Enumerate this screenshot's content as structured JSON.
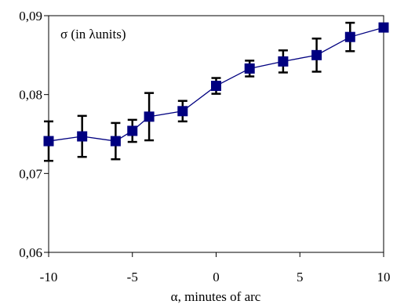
{
  "chart_data": {
    "type": "line",
    "title": "",
    "annotation": "σ (in λunits)",
    "xlabel": "α, minutes of arc",
    "ylabel": "",
    "xlim": [
      -10,
      10
    ],
    "ylim": [
      0.06,
      0.09
    ],
    "x_ticks": [
      -10,
      -5,
      0,
      5,
      10
    ],
    "x_tick_labels": [
      "-10",
      "-5",
      "0",
      "5",
      "10"
    ],
    "y_ticks": [
      0.06,
      0.07,
      0.08,
      0.09
    ],
    "y_tick_labels": [
      "0,06",
      "0,07",
      "0,08",
      "0,09"
    ],
    "grid": false,
    "series": [
      {
        "color": "#000080",
        "marker": "square",
        "x": [
          -10,
          -8,
          -6,
          -5,
          -4,
          -2,
          0,
          2,
          4,
          6,
          8,
          10
        ],
        "y": [
          0.0741,
          0.0747,
          0.0741,
          0.0754,
          0.0772,
          0.0779,
          0.0811,
          0.0833,
          0.0842,
          0.085,
          0.0873,
          0.0885
        ],
        "error": [
          0.0025,
          0.0026,
          0.0023,
          0.0014,
          0.003,
          0.0013,
          0.001,
          0.001,
          0.0014,
          0.0021,
          0.0018,
          0.0005
        ]
      }
    ]
  }
}
